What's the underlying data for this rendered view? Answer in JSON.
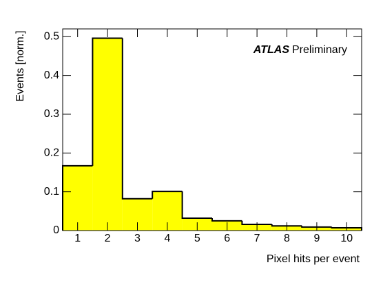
{
  "chart_data": {
    "type": "histogram",
    "bins": [
      0.5,
      1.5,
      2.5,
      3.5,
      4.5,
      5.5,
      6.5,
      7.5,
      8.5,
      9.5,
      10.5
    ],
    "values": [
      0.167,
      0.496,
      0.082,
      0.101,
      0.032,
      0.025,
      0.016,
      0.012,
      0.009,
      0.007
    ],
    "color": "#ffff00",
    "edge_color": "#000000",
    "xlim": [
      0.5,
      10.5
    ],
    "xticks": [
      1,
      2,
      3,
      4,
      5,
      6,
      7,
      8,
      9,
      10
    ],
    "ylim": [
      0,
      0.52
    ],
    "yticks": [
      0,
      0.1,
      0.2,
      0.3,
      0.4,
      0.5
    ],
    "xlabel": "Pixel hits per event",
    "ylabel": "Events [norm.]",
    "annotation": [
      "ATLAS",
      "Preliminary"
    ]
  }
}
